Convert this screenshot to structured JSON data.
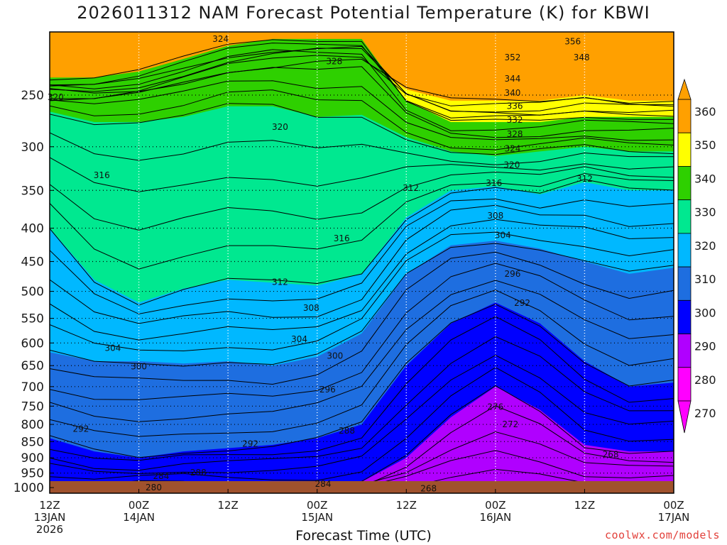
{
  "title": "2026011312 NAM Forecast Potential Temperature (K) for KBWI",
  "credit": "coolwx.com/models",
  "colors": {
    "band_270": "#ff00ff",
    "band_280": "#b000ff",
    "band_290": "#0000ff",
    "band_300": "#1e6ee0",
    "band_310": "#00b8ff",
    "band_320": "#00e890",
    "band_330": "#2ed000",
    "band_340": "#ffff00",
    "band_350": "#ffa000",
    "ground": "#a0522d"
  },
  "chart_data": {
    "type": "heatmap",
    "title": "2026011312 NAM Forecast Potential Temperature (K) for KBWI",
    "xlabel": "Forecast Time (UTC)",
    "ylabel": "",
    "x_ticks": [
      {
        "line1": "12Z",
        "line2": "13JAN",
        "line3": "2026"
      },
      {
        "line1": "00Z",
        "line2": "14JAN",
        "line3": ""
      },
      {
        "line1": "12Z",
        "line2": "",
        "line3": ""
      },
      {
        "line1": "00Z",
        "line2": "15JAN",
        "line3": ""
      },
      {
        "line1": "12Z",
        "line2": "",
        "line3": ""
      },
      {
        "line1": "00Z",
        "line2": "16JAN",
        "line3": ""
      },
      {
        "line1": "12Z",
        "line2": "",
        "line3": ""
      },
      {
        "line1": "00Z",
        "line2": "17JAN",
        "line3": ""
      }
    ],
    "x_hours": [
      0,
      12,
      24,
      36,
      48,
      60,
      72,
      84
    ],
    "xlim": [
      0,
      84
    ],
    "y_ticks": [
      "250",
      "300",
      "350",
      "400",
      "450",
      "500",
      "550",
      "600",
      "650",
      "700",
      "750",
      "800",
      "850",
      "900",
      "950",
      "1000"
    ],
    "y_values": [
      250,
      300,
      350,
      400,
      450,
      500,
      550,
      600,
      650,
      700,
      750,
      800,
      850,
      900,
      950,
      1000
    ],
    "ylim_hPa": [
      200,
      1020
    ],
    "y_scale": "log-pressure, inverted",
    "grid": true,
    "colorbar": {
      "labels": [
        "360",
        "350",
        "340",
        "330",
        "320",
        "310",
        "300",
        "290",
        "280",
        "270"
      ],
      "range": [
        270,
        360
      ],
      "interval": 10
    },
    "contour_interval": 2,
    "contour_labels": [
      {
        "text": "356",
        "x": 70.4,
        "y": 207
      },
      {
        "text": "352",
        "x": 62.3,
        "y": 219
      },
      {
        "text": "348",
        "x": 71.6,
        "y": 219
      },
      {
        "text": "344",
        "x": 62.3,
        "y": 236
      },
      {
        "text": "340",
        "x": 62.3,
        "y": 248
      },
      {
        "text": "336",
        "x": 62.6,
        "y": 260
      },
      {
        "text": "332",
        "x": 62.6,
        "y": 273
      },
      {
        "text": "328",
        "x": 62.6,
        "y": 287
      },
      {
        "text": "324",
        "x": 62.3,
        "y": 302
      },
      {
        "text": "320",
        "x": 62.2,
        "y": 320
      },
      {
        "text": "316",
        "x": 59.8,
        "y": 341
      },
      {
        "text": "312",
        "x": 72.0,
        "y": 336
      },
      {
        "text": "308",
        "x": 60.0,
        "y": 383
      },
      {
        "text": "304",
        "x": 61.0,
        "y": 410
      },
      {
        "text": "296",
        "x": 62.3,
        "y": 470
      },
      {
        "text": "292",
        "x": 63.6,
        "y": 521
      },
      {
        "text": "276",
        "x": 60.0,
        "y": 752
      },
      {
        "text": "272",
        "x": 62.0,
        "y": 800
      },
      {
        "text": "268",
        "x": 75.5,
        "y": 890
      },
      {
        "text": "324",
        "x": 23.0,
        "y": 205
      },
      {
        "text": "328",
        "x": 38.3,
        "y": 222
      },
      {
        "text": "320",
        "x": 0.8,
        "y": 252
      },
      {
        "text": "320",
        "x": 31.0,
        "y": 280
      },
      {
        "text": "316",
        "x": 7.0,
        "y": 332
      },
      {
        "text": "312",
        "x": 48.6,
        "y": 347
      },
      {
        "text": "316",
        "x": 39.3,
        "y": 415
      },
      {
        "text": "312",
        "x": 31.0,
        "y": 484
      },
      {
        "text": "308",
        "x": 35.2,
        "y": 530
      },
      {
        "text": "304",
        "x": 33.6,
        "y": 592
      },
      {
        "text": "304",
        "x": 8.5,
        "y": 611
      },
      {
        "text": "300",
        "x": 38.4,
        "y": 628
      },
      {
        "text": "300",
        "x": 12.0,
        "y": 652
      },
      {
        "text": "296",
        "x": 37.4,
        "y": 707
      },
      {
        "text": "292",
        "x": 4.2,
        "y": 813
      },
      {
        "text": "292",
        "x": 27.0,
        "y": 857
      },
      {
        "text": "288",
        "x": 40.0,
        "y": 818
      },
      {
        "text": "288",
        "x": 20.0,
        "y": 948
      },
      {
        "text": "284",
        "x": 15.0,
        "y": 960
      },
      {
        "text": "284",
        "x": 36.8,
        "y": 987
      },
      {
        "text": "280",
        "x": 14.0,
        "y": 1000
      },
      {
        "text": "268",
        "x": 51.0,
        "y": 1003
      }
    ],
    "surface_pressure_hPa": 1015
  },
  "xaxis_title": "Forecast Time (UTC)"
}
